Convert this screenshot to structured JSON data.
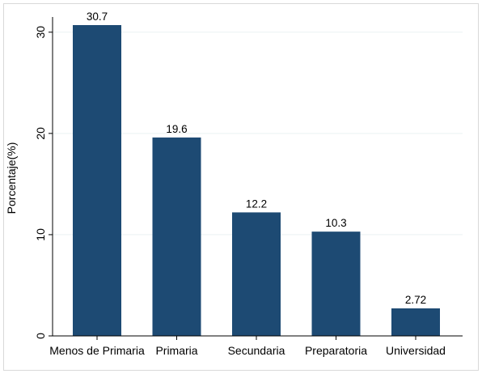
{
  "chart_data": {
    "type": "bar",
    "categories": [
      "Menos de Primaria",
      "Primaria",
      "Secundaria",
      "Preparatoria",
      "Universidad"
    ],
    "values": [
      30.7,
      19.6,
      12.2,
      10.3,
      2.72
    ],
    "data_labels": [
      "30.7",
      "19.6",
      "12.2",
      "10.3",
      "2.72"
    ],
    "title": "",
    "xlabel": "",
    "ylabel": "Porcentaje(%)",
    "ylim": [
      0,
      31.5
    ],
    "yticks": [
      0,
      10,
      20,
      30
    ],
    "ytick_labels": [
      "0",
      "10",
      "20",
      "30"
    ],
    "grid": true,
    "legend": "none",
    "colors": {
      "bar": "#1d4a73",
      "grid": "#eaf2f3",
      "axis": "#000000",
      "frame": "#d9d9d9",
      "background": "#ffffff"
    }
  }
}
